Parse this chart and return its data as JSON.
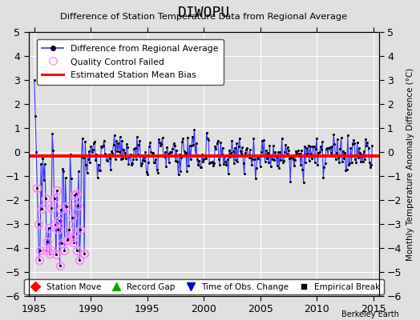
{
  "title": "DIWOPU",
  "subtitle": "Difference of Station Temperature Data from Regional Average",
  "ylabel_right": "Monthly Temperature Anomaly Difference (°C)",
  "xlim": [
    1984.5,
    2015.5
  ],
  "ylim": [
    -6,
    5
  ],
  "yticks": [
    -6,
    -5,
    -4,
    -3,
    -2,
    -1,
    0,
    1,
    2,
    3,
    4,
    5
  ],
  "xticks": [
    1985,
    1990,
    1995,
    2000,
    2005,
    2010,
    2015
  ],
  "bias_level": -0.15,
  "background_color": "#e0e0e0",
  "plot_bg_color": "#e0e0e0",
  "line_color": "#3333ff",
  "bias_color": "#ff0000",
  "marker_color": "#000000",
  "qc_marker_color": "#ff88ff",
  "watermark": "Berkeley Earth",
  "seed": 12345
}
